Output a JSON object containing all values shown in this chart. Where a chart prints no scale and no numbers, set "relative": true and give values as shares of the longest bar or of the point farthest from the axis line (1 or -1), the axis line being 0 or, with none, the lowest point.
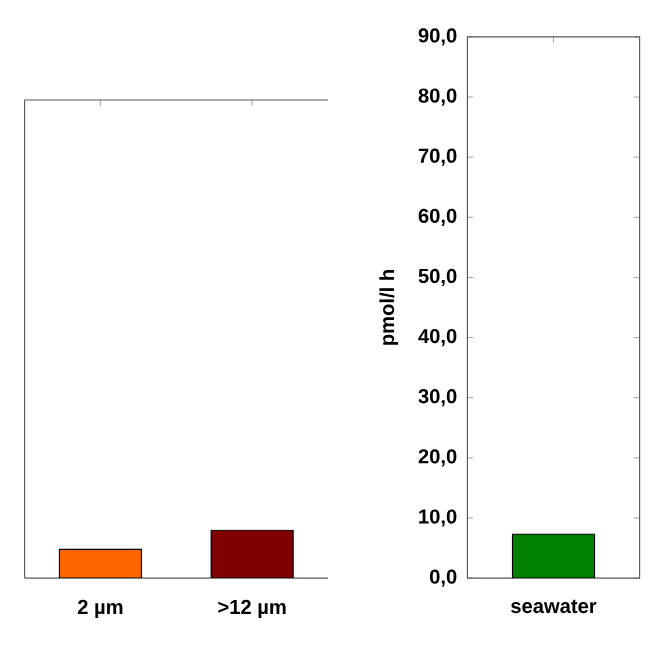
{
  "chart_data": [
    {
      "type": "bar",
      "categories": [
        "2 µm",
        ">12 µm"
      ],
      "values": [
        0.6,
        1
      ],
      "colors": [
        "#ff6600",
        "#800000"
      ],
      "relative": true
    },
    {
      "type": "bar",
      "categories": [
        "seawater"
      ],
      "values": [
        7.3
      ],
      "colors": [
        "#008000"
      ],
      "ylabel": "pmol/l h",
      "ylim": [
        0,
        90
      ],
      "yticks": [
        {
          "value": 0,
          "label": "0,0"
        },
        {
          "value": 10,
          "label": "10,0"
        },
        {
          "value": 20,
          "label": "20,0"
        },
        {
          "value": 30,
          "label": "30,0"
        },
        {
          "value": 40,
          "label": "40,0"
        },
        {
          "value": 50,
          "label": "50,0"
        },
        {
          "value": 60,
          "label": "60,0"
        },
        {
          "value": 70,
          "label": "70,0"
        },
        {
          "value": 80,
          "label": "80,0"
        },
        {
          "value": 90,
          "label": "90,0"
        }
      ]
    }
  ]
}
